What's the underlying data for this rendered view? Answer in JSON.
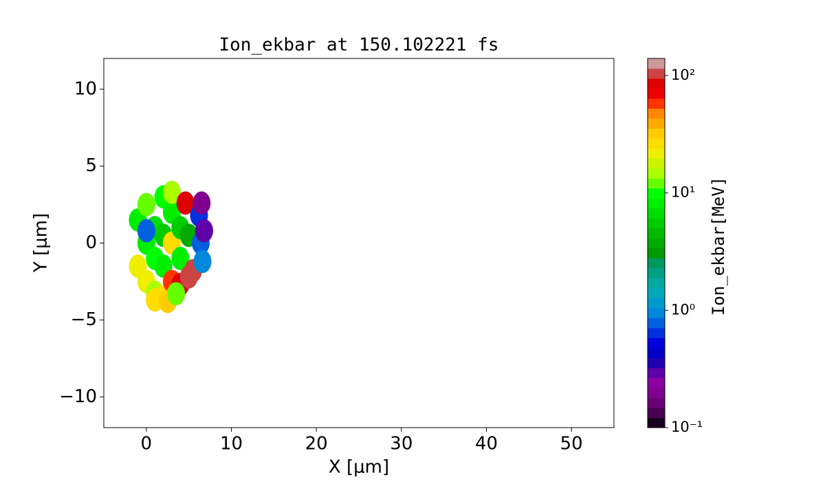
{
  "chart_data": {
    "type": "heatmap",
    "title": "Ion_ekbar at 150.102221 fs",
    "xlabel": "X [μm]",
    "ylabel": "Y [μm]",
    "xlim": [
      -5,
      55
    ],
    "ylim": [
      -12,
      12
    ],
    "xticks": [
      0,
      10,
      20,
      30,
      40,
      50
    ],
    "yticks": [
      {
        "value": -10,
        "label": "−10"
      },
      {
        "value": -5,
        "label": "−5"
      },
      0,
      5,
      10
    ],
    "patches": {
      "x": [
        -1,
        -1,
        0,
        0,
        0,
        1,
        1,
        1,
        2,
        2,
        2,
        2,
        3,
        3,
        3,
        3,
        4,
        4,
        4,
        4.6,
        5,
        5,
        5.5,
        6.2,
        6.4,
        6.6,
        6.8,
        6.5,
        1,
        2.5,
        0,
        3.5
      ],
      "y": [
        1.5,
        -1.5,
        2.5,
        0,
        -2.5,
        1,
        -1,
        -3.2,
        3,
        0.5,
        -1.5,
        -3.5,
        2,
        0,
        -2.5,
        3.3,
        1,
        -1,
        -2.7,
        2.6,
        -2.2,
        0.5,
        -1.8,
        1.8,
        0,
        -1.2,
        0.8,
        2.6,
        -3.7,
        -3.8,
        0.8,
        -3.3
      ],
      "values": [
        9,
        20,
        12,
        8,
        22,
        7,
        10,
        15,
        10,
        6,
        8,
        28,
        9,
        25,
        60,
        14,
        6,
        9,
        90,
        80,
        95,
        4,
        100,
        0.6,
        0.8,
        1.0,
        0.3,
        0.2,
        25,
        30,
        0.8,
        12
      ]
    },
    "colorbar": {
      "label": "Ion_ekbar[MeV]",
      "log": true,
      "clim": [
        0.1,
        140
      ],
      "ticks": [
        {
          "value": 0.1,
          "label": "10⁻¹"
        },
        {
          "value": 1,
          "label": "10⁰"
        },
        {
          "value": 10,
          "label": "10¹"
        },
        {
          "value": 100,
          "label": "10²"
        }
      ],
      "colors": [
        "#1a0020",
        "#4a0050",
        "#6a0078",
        "#7f0090",
        "#8a00a0",
        "#6000a8",
        "#2000b0",
        "#0000c8",
        "#0000dd",
        "#0030e0",
        "#0060dd",
        "#0088dd",
        "#0099cc",
        "#00a8b8",
        "#00aaa0",
        "#00a088",
        "#009960",
        "#009900",
        "#00aa00",
        "#00bb00",
        "#00cc00",
        "#00dd00",
        "#00ee00",
        "#00ff00",
        "#66ff00",
        "#aaff00",
        "#ccf200",
        "#eeee00",
        "#ffdd00",
        "#ffcc00",
        "#ffaa00",
        "#ff8800",
        "#ff3300",
        "#ee0000",
        "#dd0000",
        "#cc4444",
        "#cc9999"
      ]
    }
  }
}
